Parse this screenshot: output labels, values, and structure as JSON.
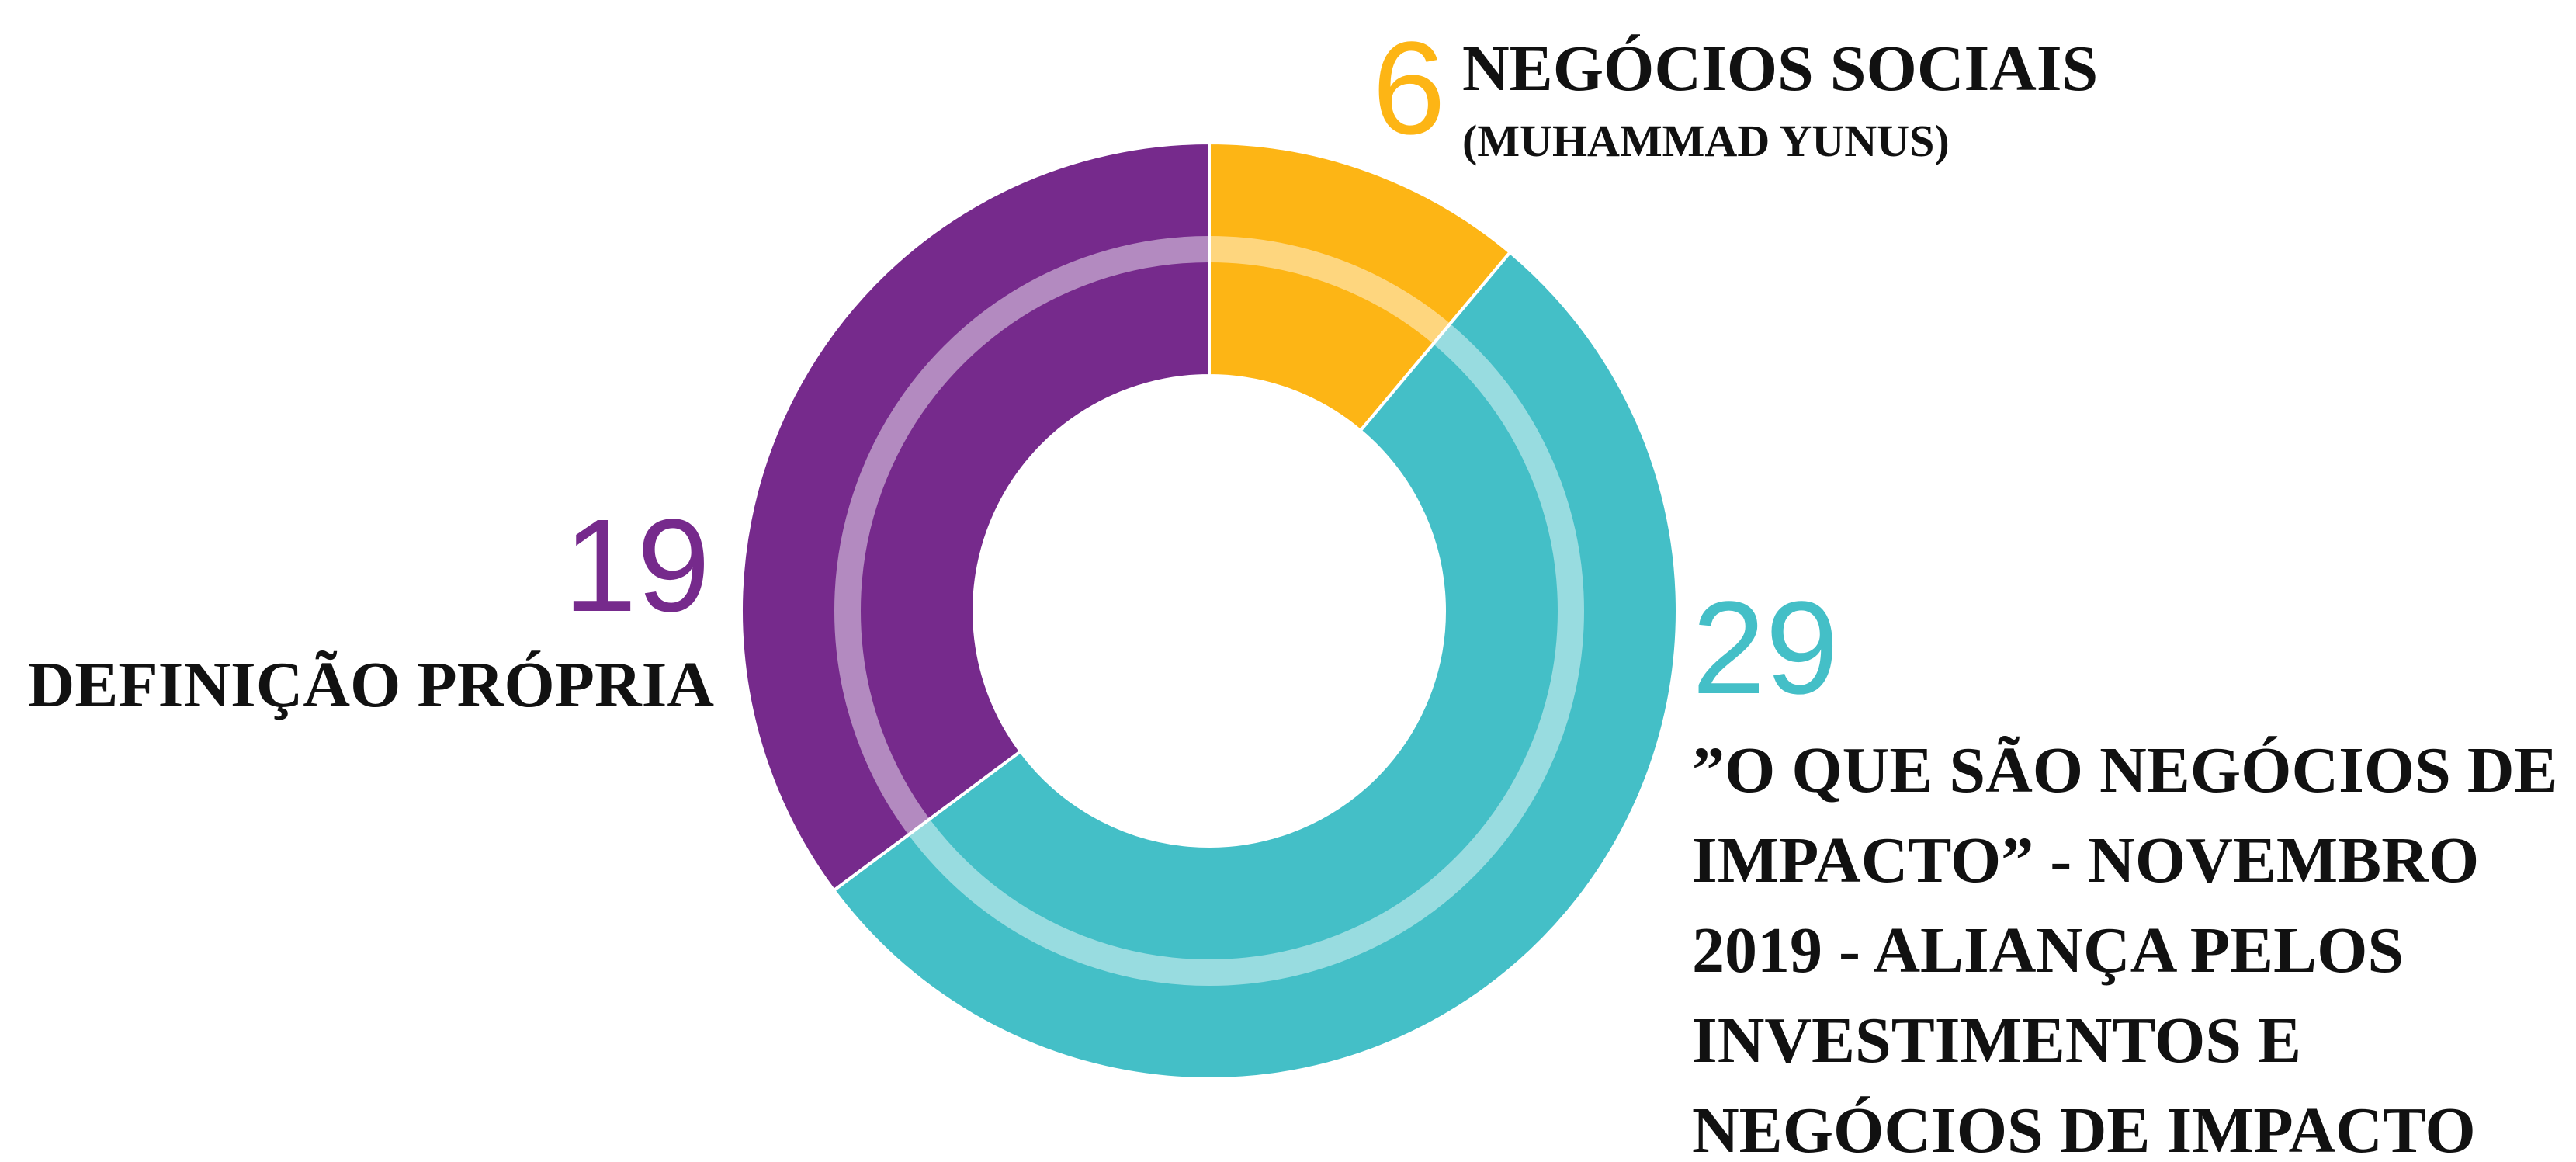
{
  "chart_data": {
    "type": "donut",
    "categories": [
      [
        "NEGÓCIOS SOCIAIS",
        "(MUHAMMAD YUNUS)"
      ],
      [
        "”O QUE SÃO NEGÓCIOS DE",
        "IMPACTO” - NOVEMBRO",
        "2019 - ALIANÇA PELOS",
        "INVESTIMENTOS E",
        "NEGÓCIOS DE IMPACTO"
      ],
      [
        "DEFINIÇÃO PRÓPRIA"
      ]
    ],
    "values": [
      6,
      29,
      19
    ],
    "colors": [
      "#fdb515",
      "#44bfc7",
      "#762a8c"
    ]
  }
}
